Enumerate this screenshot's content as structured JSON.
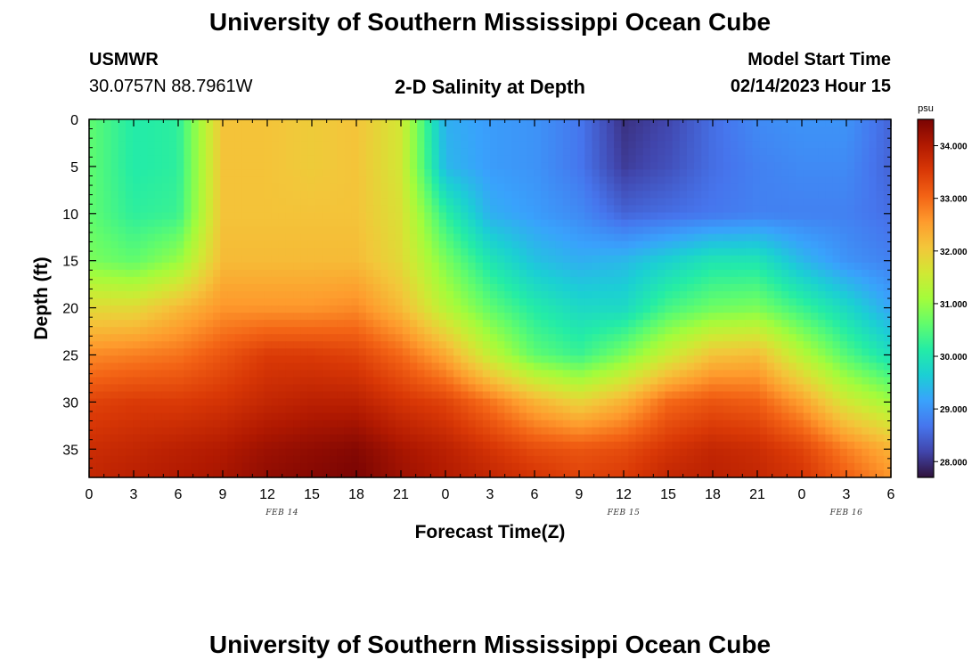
{
  "page": {
    "title": "University of Southern Mississippi Ocean Cube",
    "station": "USMWR",
    "coords": "30.0757N  88.7961W",
    "subtitle": "2-D Salinity at Depth",
    "start_label": "Model Start Time",
    "start_value": "02/14/2023 Hour 15",
    "footer_title": "University of Southern Mississippi Ocean Cube"
  },
  "chart_data": {
    "type": "heatmap",
    "title": "2-D Salinity at Depth",
    "xlabel": "Forecast Time(Z)",
    "ylabel": "Depth (ft)",
    "x_ticks": [
      "0",
      "3",
      "6",
      "9",
      "12",
      "15",
      "18",
      "21",
      "0",
      "3",
      "6",
      "9",
      "12",
      "15",
      "18",
      "21",
      "0",
      "3",
      "6"
    ],
    "x_range_hours": [
      0,
      54
    ],
    "date_labels": [
      {
        "label": "FEB 14",
        "hour": 13
      },
      {
        "label": "FEB 15",
        "hour": 36
      },
      {
        "label": "FEB 16",
        "hour": 51
      }
    ],
    "y_ticks": [
      0,
      5,
      10,
      15,
      20,
      25,
      30,
      35
    ],
    "y_range": [
      0,
      38
    ],
    "colorbar": {
      "unit": "psu",
      "min": 27.7,
      "max": 34.5,
      "ticks": [
        "34.000",
        "33.000",
        "32.000",
        "31.000",
        "30.000",
        "29.000",
        "28.000"
      ],
      "tick_values": [
        34,
        33,
        32,
        31,
        30,
        29,
        28
      ],
      "colors": [
        "#30123b",
        "#4145ab",
        "#4675ed",
        "#39a2fc",
        "#1bcfd4",
        "#24eca6",
        "#61fc6c",
        "#a4fc3b",
        "#d1e834",
        "#f3c63a",
        "#fe9b2d",
        "#f36315",
        "#d93806",
        "#b11901",
        "#7a0403"
      ]
    },
    "grid": {
      "times": [
        0,
        3,
        6,
        9,
        12,
        15,
        18,
        21,
        24,
        27,
        30,
        33,
        36,
        39,
        42,
        45,
        48,
        51,
        54
      ],
      "depths": [
        0,
        5,
        10,
        15,
        20,
        25,
        30,
        35,
        38
      ],
      "salinity": [
        [
          30.6,
          30.1,
          30.2,
          32.1,
          32.1,
          32.0,
          32.1,
          31.6,
          29.3,
          29.1,
          29.0,
          28.7,
          28.0,
          28.2,
          28.6,
          28.9,
          29.0,
          29.0,
          28.5
        ],
        [
          30.6,
          30.1,
          30.2,
          32.1,
          32.1,
          32.0,
          32.1,
          31.6,
          29.4,
          29.1,
          29.0,
          28.7,
          28.1,
          28.3,
          28.6,
          28.8,
          28.9,
          28.9,
          28.5
        ],
        [
          30.6,
          30.2,
          30.3,
          32.1,
          32.1,
          32.1,
          32.1,
          31.7,
          30.2,
          29.3,
          29.1,
          28.9,
          28.5,
          28.6,
          28.7,
          28.8,
          28.8,
          28.8,
          28.6
        ],
        [
          30.8,
          30.6,
          31.0,
          32.2,
          32.2,
          32.2,
          32.2,
          31.8,
          30.8,
          30.0,
          29.5,
          29.3,
          29.4,
          29.7,
          30.0,
          30.0,
          29.4,
          29.0,
          28.8
        ],
        [
          31.8,
          31.8,
          32.2,
          32.6,
          32.6,
          32.6,
          32.7,
          32.2,
          31.3,
          30.6,
          30.1,
          29.8,
          29.8,
          30.4,
          30.7,
          30.8,
          30.3,
          29.8,
          29.2
        ],
        [
          32.7,
          32.8,
          32.9,
          33.2,
          33.5,
          33.5,
          33.4,
          33.0,
          32.4,
          31.4,
          30.6,
          30.3,
          30.8,
          31.5,
          32.1,
          32.2,
          31.3,
          30.5,
          29.9
        ],
        [
          33.4,
          33.5,
          33.5,
          33.6,
          33.8,
          33.9,
          33.9,
          33.6,
          33.4,
          32.9,
          32.3,
          31.9,
          32.3,
          33.0,
          33.2,
          33.1,
          32.5,
          31.6,
          31.1
        ],
        [
          33.7,
          33.8,
          33.9,
          34.0,
          34.2,
          34.3,
          34.4,
          34.1,
          33.9,
          33.6,
          33.3,
          33.2,
          33.3,
          33.6,
          33.8,
          33.7,
          33.4,
          32.8,
          32.3
        ],
        [
          33.8,
          33.9,
          34.0,
          34.1,
          34.3,
          34.4,
          34.5,
          34.2,
          34.0,
          33.8,
          33.6,
          33.4,
          33.5,
          33.8,
          33.9,
          33.8,
          33.6,
          33.1,
          32.6
        ]
      ]
    }
  }
}
